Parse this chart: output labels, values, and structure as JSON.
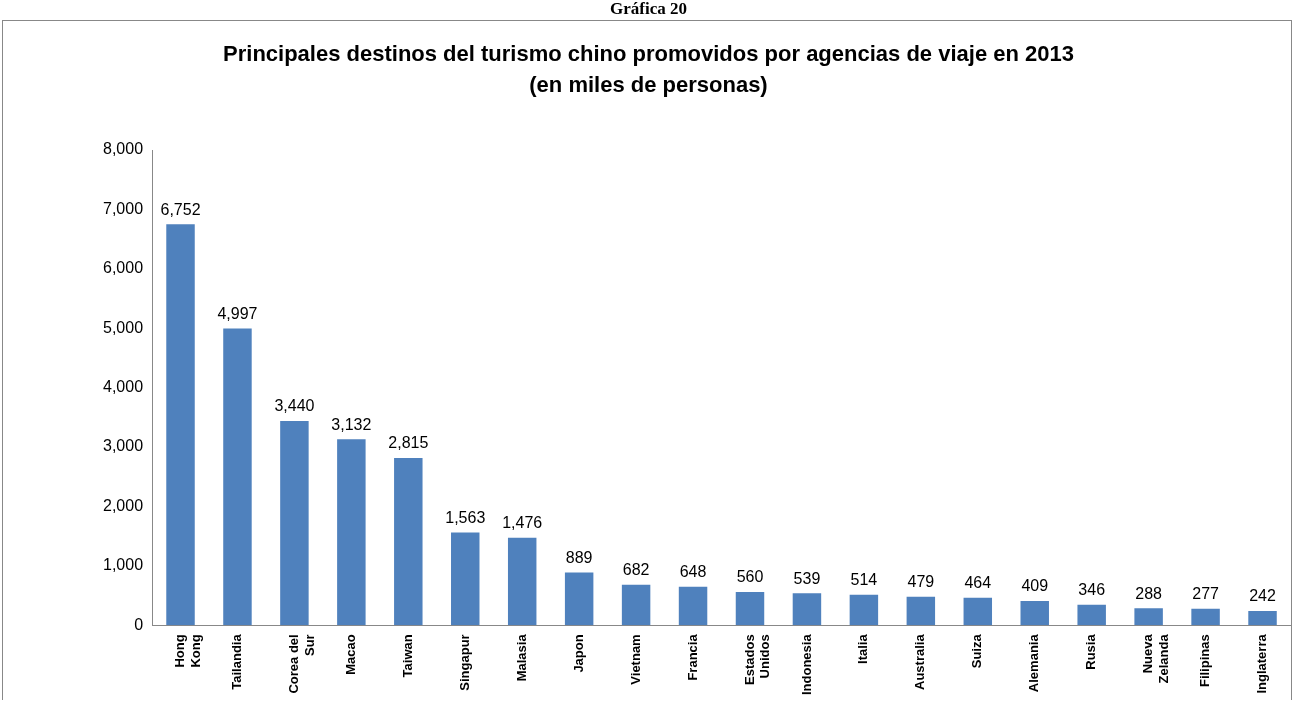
{
  "chart_data": {
    "type": "bar",
    "title": "Principales destinos del turismo chino promovidos por agencias de viaje en 2013",
    "subtitle": "(en miles de personas)",
    "annotations": [
      "Gráfica 20"
    ],
    "categories": [
      "Hong Kong",
      "Tailandia",
      "Corea del Sur",
      "Macao",
      "Taiwan",
      "Singapur",
      "Malasia",
      "Japon",
      "Vietnam",
      "Francia",
      "Estados Unidos",
      "Indonesia",
      "Italia",
      "Australia",
      "Suiza",
      "Alemania",
      "Rusia",
      "Nueva Zelanda",
      "Filipinas",
      "Inglaterra"
    ],
    "values": [
      6752,
      4997,
      3440,
      3132,
      2815,
      1563,
      1476,
      889,
      682,
      648,
      560,
      539,
      514,
      479,
      464,
      409,
      346,
      288,
      277,
      242
    ],
    "value_labels": [
      "6,752",
      "4,997",
      "3,440",
      "3,132",
      "2,815",
      "1,563",
      "1,476",
      "889",
      "682",
      "648",
      "560",
      "539",
      "514",
      "479",
      "464",
      "409",
      "346",
      "288",
      "277",
      "242"
    ],
    "color": "#4f81bd",
    "ylim": [
      0,
      8000
    ],
    "yticks": [
      0,
      {
        "value": 1000,
        "label": "1,000"
      },
      {
        "value": 2000,
        "label": "2,000"
      },
      {
        "value": 3000,
        "label": "3,000"
      },
      {
        "value": 4000,
        "label": "4,000"
      },
      {
        "value": 5000,
        "label": "5,000"
      },
      {
        "value": 6000,
        "label": "6,000"
      },
      {
        "value": 7000,
        "label": "7,000"
      },
      {
        "value": 8000,
        "label": "8,000"
      }
    ],
    "grid": false,
    "legend": false
  }
}
